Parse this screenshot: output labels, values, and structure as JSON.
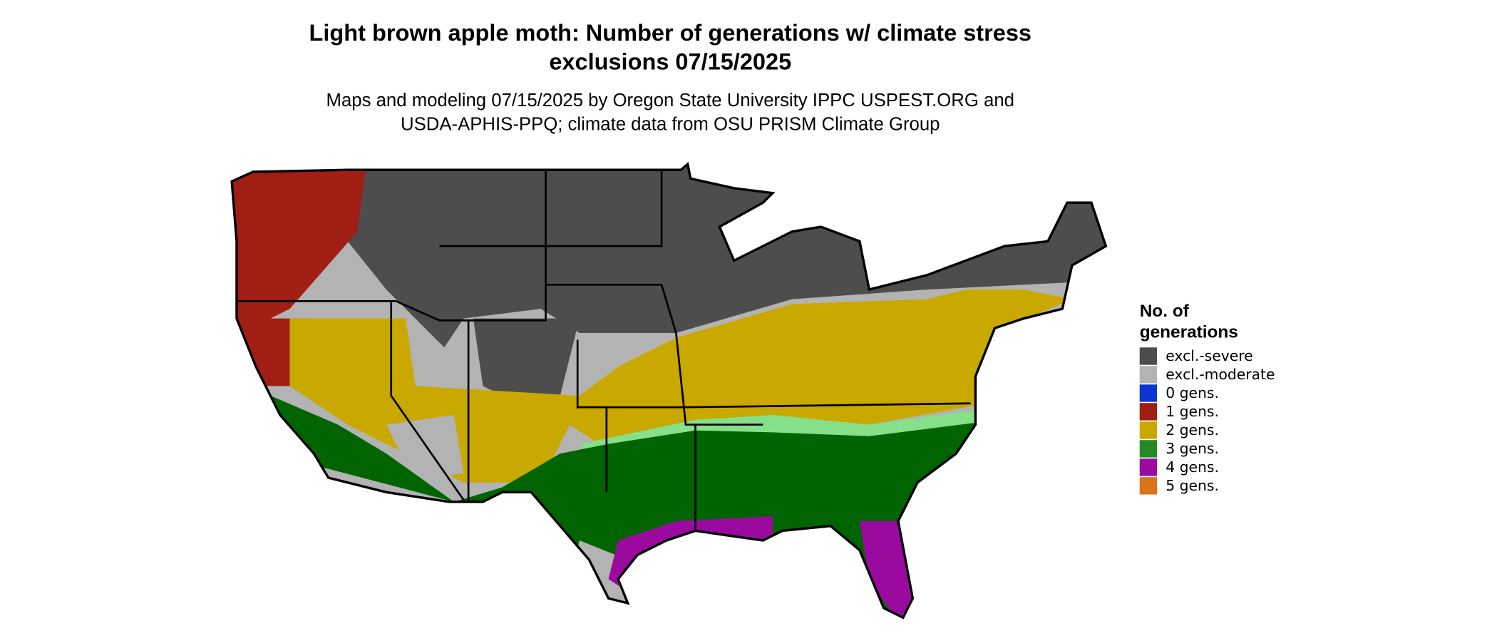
{
  "header": {
    "title_lines": [
      "Light brown apple moth: Number of generations w/ climate stress",
      "exclusions 07/15/2025"
    ],
    "subtitle_lines": [
      "Maps and modeling 07/15/2025 by Oregon State University IPPC USPEST.ORG and",
      "USDA-APHIS-PPQ; climate data from OSU PRISM Climate Group"
    ]
  },
  "legend": {
    "title_lines": [
      "No. of",
      "generations"
    ],
    "items": [
      {
        "label": "excl.-severe",
        "color": "#4d4d4d"
      },
      {
        "label": "excl.-moderate",
        "color": "#b3b3b3"
      },
      {
        "label": "0 gens.",
        "color": "#0a35d0"
      },
      {
        "label": "1 gens.",
        "color": "#a01e14"
      },
      {
        "label": "2 gens.",
        "color": "#c9a800"
      },
      {
        "label": "3 gens.",
        "color": "#258a24"
      },
      {
        "label": "4 gens.",
        "color": "#9a0a9e"
      },
      {
        "label": "5 gens.",
        "color": "#dc7417"
      }
    ]
  }
}
